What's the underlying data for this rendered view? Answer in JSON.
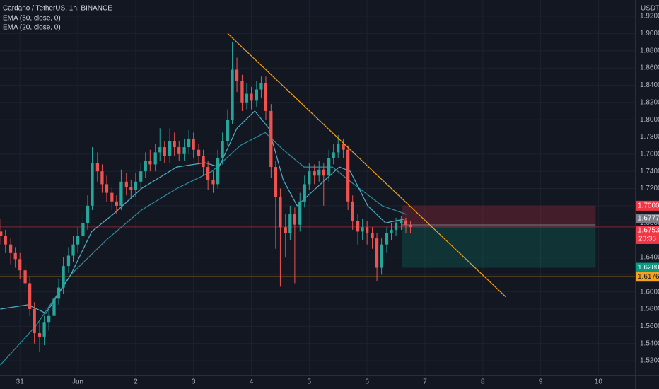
{
  "chart_data": {
    "type": "candlestick",
    "title": "Cardano / TetherUS, 1h, BINANCE",
    "y_unit": "USDT",
    "up_color": "#26a69a",
    "down_color": "#ef5350",
    "x": [
      -0.33,
      -0.25,
      -0.16,
      -0.08,
      0.0,
      0.09,
      0.17,
      0.25,
      0.34,
      0.42,
      0.5,
      0.59,
      0.67,
      0.75,
      0.84,
      0.92,
      1.0,
      1.09,
      1.17,
      1.25,
      1.34,
      1.42,
      1.5,
      1.59,
      1.67,
      1.75,
      1.84,
      1.92,
      2.0,
      2.09,
      2.17,
      2.25,
      2.34,
      2.42,
      2.5,
      2.59,
      2.67,
      2.75,
      2.84,
      2.92,
      3.0,
      3.09,
      3.17,
      3.25,
      3.34,
      3.42,
      3.5,
      3.59,
      3.67,
      3.75,
      3.84,
      3.92,
      4.0,
      4.09,
      4.17,
      4.25,
      4.34,
      4.42,
      4.5,
      4.59,
      4.67,
      4.75,
      4.84,
      4.92,
      5.0,
      5.09,
      5.17,
      5.25,
      5.34,
      5.42,
      5.5,
      5.59,
      5.67,
      5.75,
      5.84,
      5.92,
      6.0,
      6.09,
      6.17,
      6.25,
      6.34,
      6.42,
      6.5,
      6.59,
      6.67,
      6.75
    ],
    "open": [
      1.67,
      1.665,
      1.655,
      1.645,
      1.638,
      1.625,
      1.61,
      1.58,
      1.552,
      1.548,
      1.565,
      1.572,
      1.592,
      1.605,
      1.63,
      1.642,
      1.655,
      1.665,
      1.68,
      1.7,
      1.75,
      1.74,
      1.725,
      1.715,
      1.705,
      1.7,
      1.728,
      1.722,
      1.718,
      1.728,
      1.74,
      1.752,
      1.748,
      1.762,
      1.768,
      1.758,
      1.775,
      1.768,
      1.76,
      1.768,
      1.778,
      1.765,
      1.758,
      1.745,
      1.73,
      1.725,
      1.755,
      1.775,
      1.8,
      1.858,
      1.845,
      1.82,
      1.83,
      1.822,
      1.835,
      1.842,
      1.81,
      1.745,
      1.71,
      1.675,
      1.668,
      1.69,
      1.678,
      1.705,
      1.725,
      1.74,
      1.735,
      1.742,
      1.735,
      1.755,
      1.762,
      1.772,
      1.765,
      1.705,
      1.682,
      1.67,
      1.675,
      1.668,
      1.662,
      1.628,
      1.655,
      1.668,
      1.672,
      1.68,
      1.683,
      1.678
    ],
    "high": [
      1.685,
      1.672,
      1.662,
      1.652,
      1.645,
      1.632,
      1.618,
      1.588,
      1.565,
      1.572,
      1.58,
      1.6,
      1.615,
      1.64,
      1.652,
      1.665,
      1.675,
      1.69,
      1.712,
      1.768,
      1.762,
      1.748,
      1.735,
      1.722,
      1.712,
      1.742,
      1.738,
      1.73,
      1.738,
      1.75,
      1.762,
      1.765,
      1.772,
      1.79,
      1.775,
      1.79,
      1.785,
      1.775,
      1.778,
      1.788,
      1.785,
      1.772,
      1.765,
      1.752,
      1.74,
      1.765,
      1.785,
      1.812,
      1.89,
      1.872,
      1.852,
      1.842,
      1.838,
      1.845,
      1.85,
      1.85,
      1.818,
      1.752,
      1.72,
      1.69,
      1.7,
      1.698,
      1.715,
      1.735,
      1.75,
      1.748,
      1.752,
      1.75,
      1.765,
      1.772,
      1.782,
      1.778,
      1.77,
      1.712,
      1.69,
      1.685,
      1.682,
      1.675,
      1.668,
      1.662,
      1.675,
      1.68,
      1.686,
      1.688,
      1.686,
      1.682
    ],
    "low": [
      1.655,
      1.645,
      1.632,
      1.628,
      1.615,
      1.6,
      1.572,
      1.54,
      1.53,
      1.538,
      1.555,
      1.565,
      1.585,
      1.598,
      1.622,
      1.635,
      1.645,
      1.655,
      1.672,
      1.695,
      1.728,
      1.715,
      1.705,
      1.695,
      1.69,
      1.695,
      1.712,
      1.708,
      1.71,
      1.72,
      1.732,
      1.74,
      1.74,
      1.752,
      1.75,
      1.75,
      1.758,
      1.752,
      1.752,
      1.76,
      1.755,
      1.748,
      1.735,
      1.718,
      1.715,
      1.72,
      1.748,
      1.77,
      1.795,
      1.832,
      1.81,
      1.812,
      1.812,
      1.815,
      1.825,
      1.8,
      1.732,
      1.65,
      1.606,
      1.64,
      1.66,
      1.61,
      1.67,
      1.698,
      1.718,
      1.725,
      1.728,
      1.7,
      1.728,
      1.748,
      1.755,
      1.755,
      1.695,
      1.672,
      1.655,
      1.66,
      1.655,
      1.65,
      1.612,
      1.62,
      1.645,
      1.66,
      1.665,
      1.672,
      1.668,
      1.668
    ],
    "close": [
      1.665,
      1.655,
      1.645,
      1.638,
      1.625,
      1.61,
      1.58,
      1.552,
      1.548,
      1.565,
      1.572,
      1.592,
      1.605,
      1.63,
      1.642,
      1.655,
      1.665,
      1.68,
      1.7,
      1.75,
      1.74,
      1.725,
      1.715,
      1.705,
      1.7,
      1.728,
      1.722,
      1.718,
      1.728,
      1.74,
      1.752,
      1.748,
      1.762,
      1.768,
      1.758,
      1.775,
      1.768,
      1.76,
      1.768,
      1.778,
      1.765,
      1.758,
      1.745,
      1.73,
      1.725,
      1.755,
      1.775,
      1.8,
      1.858,
      1.845,
      1.82,
      1.83,
      1.822,
      1.835,
      1.842,
      1.81,
      1.745,
      1.71,
      1.675,
      1.668,
      1.69,
      1.678,
      1.705,
      1.725,
      1.74,
      1.735,
      1.742,
      1.735,
      1.755,
      1.762,
      1.772,
      1.765,
      1.705,
      1.682,
      1.67,
      1.675,
      1.668,
      1.662,
      1.628,
      1.655,
      1.668,
      1.672,
      1.68,
      1.683,
      1.678,
      1.6753
    ],
    "series": [
      {
        "name": "EMA (50, close, 0)",
        "color": "#2a8fa0",
        "x": [
          -0.34,
          0.27,
          0.88,
          1.49,
          2.1,
          2.71,
          3.32,
          3.81,
          4.24,
          4.55,
          4.91,
          5.4,
          5.77,
          6.26,
          6.68
        ],
        "values": [
          1.515,
          1.56,
          1.62,
          1.66,
          1.695,
          1.72,
          1.74,
          1.77,
          1.785,
          1.765,
          1.745,
          1.745,
          1.725,
          1.7,
          1.69
        ]
      },
      {
        "name": "EMA (20, close, 0)",
        "color": "#4fb0c6",
        "x": [
          -0.34,
          0.14,
          0.45,
          0.88,
          1.24,
          1.61,
          2.1,
          2.71,
          3.2,
          3.44,
          3.75,
          4.06,
          4.3,
          4.55,
          4.79,
          5.03,
          5.52,
          5.71,
          6.01,
          6.32,
          6.68
        ],
        "values": [
          1.58,
          1.585,
          1.575,
          1.62,
          1.67,
          1.69,
          1.72,
          1.745,
          1.75,
          1.745,
          1.79,
          1.81,
          1.79,
          1.73,
          1.7,
          1.715,
          1.745,
          1.74,
          1.7,
          1.68,
          1.685
        ]
      }
    ],
    "xlim": [
      -0.345,
      10.63
    ],
    "xticks": [
      {
        "value": 0,
        "label": "31"
      },
      {
        "value": 1,
        "label": "Jun"
      },
      2,
      3,
      4,
      5,
      6,
      7,
      8,
      9,
      10
    ],
    "ylim": [
      1.5036,
      1.9389
    ],
    "yticks": [
      {
        "value": 1.52,
        "label": "1.5200"
      },
      {
        "value": 1.54,
        "label": "1.5400"
      },
      {
        "value": 1.56,
        "label": "1.5600"
      },
      {
        "value": 1.58,
        "label": "1.5800"
      },
      {
        "value": 1.6,
        "label": "1.6000"
      },
      {
        "value": 1.62,
        "label": "1.6200"
      },
      {
        "value": 1.64,
        "label": "1.6400"
      },
      {
        "value": 1.66,
        "label": "1.6600"
      },
      {
        "value": 1.68,
        "label": "1.6800"
      },
      {
        "value": 1.7,
        "label": "1.7000"
      },
      {
        "value": 1.72,
        "label": "1.7200"
      },
      {
        "value": 1.74,
        "label": "1.7400"
      },
      {
        "value": 1.76,
        "label": "1.7600"
      },
      {
        "value": 1.78,
        "label": "1.7800"
      },
      {
        "value": 1.8,
        "label": "1.8000"
      },
      {
        "value": 1.82,
        "label": "1.8200"
      },
      {
        "value": 1.84,
        "label": "1.8400"
      },
      {
        "value": 1.86,
        "label": "1.8600"
      },
      {
        "value": 1.88,
        "label": "1.8800"
      },
      {
        "value": 1.9,
        "label": "1.9000"
      },
      {
        "value": 1.92,
        "label": "1.9200"
      }
    ],
    "grid": true,
    "trendline": {
      "x": [
        3.59,
        8.4
      ],
      "values": [
        1.9,
        1.594
      ],
      "color": "#f7a21b"
    },
    "support": {
      "value": 1.6176,
      "label": "1.6176",
      "color": "#f7a21b"
    },
    "last_price": {
      "value": 1.6753,
      "label": "1.6753",
      "countdown": "20:35",
      "color": "#f23645"
    },
    "position": {
      "x": [
        6.6,
        9.95
      ],
      "stop": {
        "value": 1.7,
        "label": "1.7000",
        "color": "#f23645"
      },
      "entry": {
        "value": 1.6777,
        "label": "1.6777",
        "color": "#787b86"
      },
      "target": {
        "value": 1.628,
        "label": "1.6280",
        "color": "#089981"
      }
    }
  }
}
